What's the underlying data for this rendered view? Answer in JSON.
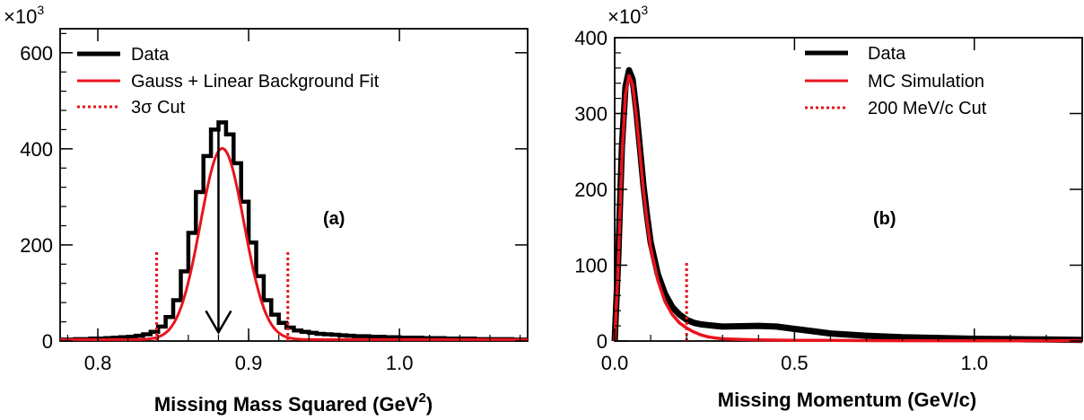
{
  "chart_data": [
    {
      "type": "line",
      "panel_label": "(a)",
      "xlabel_main": "Missing Mass Squared (GeV",
      "xlabel_sup": "2",
      "xlabel_end": ")",
      "ylabel": "",
      "multiplier_base": "×10",
      "multiplier_exp": "3",
      "xlim": [
        0.775,
        1.085
      ],
      "ylim": [
        0,
        650
      ],
      "x_ticks": [
        0.8,
        0.9,
        1.0
      ],
      "x_tick_labels": [
        "0.8",
        "0.9",
        "1.0"
      ],
      "y_ticks": [
        0,
        200,
        400,
        600
      ],
      "y_tick_labels": [
        "0",
        "200",
        "400",
        "600"
      ],
      "legend": [
        "Data",
        "Gauss + Linear Background Fit",
        "3σ Cut"
      ],
      "legend_position": "top-left",
      "colors": {
        "data": "#000000",
        "fit": "#e8141c",
        "cut": "#e8141c"
      },
      "series": [
        {
          "name": "Data",
          "style": "step",
          "bin_width": 0.005,
          "x": [
            0.775,
            0.78,
            0.785,
            0.79,
            0.795,
            0.8,
            0.805,
            0.81,
            0.815,
            0.82,
            0.825,
            0.83,
            0.835,
            0.84,
            0.845,
            0.85,
            0.855,
            0.86,
            0.865,
            0.87,
            0.875,
            0.88,
            0.885,
            0.89,
            0.895,
            0.9,
            0.905,
            0.91,
            0.915,
            0.92,
            0.925,
            0.93,
            0.935,
            0.94,
            0.945,
            0.95,
            0.955,
            0.96,
            0.965,
            0.97,
            0.975,
            0.98,
            0.985,
            0.99,
            0.995,
            1.0,
            1.005,
            1.01,
            1.015,
            1.02,
            1.025,
            1.03,
            1.035,
            1.04,
            1.045,
            1.05,
            1.055,
            1.06,
            1.065,
            1.07,
            1.075,
            1.08
          ],
          "values": [
            3,
            3,
            4,
            4,
            5,
            5,
            6,
            7,
            8,
            9,
            11,
            14,
            19,
            30,
            50,
            85,
            145,
            225,
            310,
            385,
            440,
            455,
            430,
            370,
            290,
            205,
            135,
            85,
            55,
            38,
            28,
            22,
            19,
            17,
            15,
            14,
            13,
            12,
            11,
            10,
            10,
            9,
            9,
            8,
            8,
            7,
            7,
            7,
            6,
            6,
            6,
            5,
            5,
            5,
            5,
            4,
            4,
            4,
            4,
            4,
            3,
            3
          ]
        },
        {
          "name": "Gauss + Linear Background Fit",
          "style": "curve",
          "gauss_amp": 398,
          "gauss_mean": 0.8825,
          "gauss_sigma": 0.0145,
          "bkg_offset": 3,
          "x_range": [
            0.775,
            1.085
          ]
        }
      ],
      "cuts": [
        {
          "x": 0.839,
          "y_top": 190
        },
        {
          "x": 0.926,
          "y_top": 190
        }
      ],
      "arrow": {
        "x": 0.88,
        "y_from": 445,
        "y_to": 18
      }
    },
    {
      "type": "line",
      "panel_label": "(b)",
      "xlabel_main": "Missing Momentum (GeV/c)",
      "ylabel": "",
      "multiplier_base": "×10",
      "multiplier_exp": "3",
      "xlim": [
        0,
        1.3
      ],
      "ylim": [
        0,
        400
      ],
      "x_ticks": [
        0.0,
        0.5,
        1.0
      ],
      "x_tick_labels": [
        "0.0",
        "0.5",
        "1.0"
      ],
      "y_ticks": [
        0,
        100,
        200,
        300,
        400
      ],
      "y_tick_labels": [
        "0",
        "100",
        "200",
        "300",
        "400"
      ],
      "legend": [
        "Data",
        "MC Simulation",
        "200 MeV/c Cut"
      ],
      "legend_position": "top-right",
      "colors": {
        "data": "#000000",
        "mc": "#e8141c",
        "cut": "#e8141c"
      },
      "series": [
        {
          "name": "Data",
          "x": [
            0,
            0.01,
            0.02,
            0.03,
            0.04,
            0.05,
            0.06,
            0.07,
            0.08,
            0.09,
            0.1,
            0.12,
            0.14,
            0.16,
            0.18,
            0.2,
            0.22,
            0.24,
            0.26,
            0.28,
            0.3,
            0.35,
            0.4,
            0.45,
            0.5,
            0.55,
            0.6,
            0.7,
            0.8,
            0.9,
            1.0,
            1.1,
            1.2,
            1.3
          ],
          "values": [
            0,
            110,
            255,
            335,
            357,
            345,
            305,
            255,
            205,
            165,
            130,
            88,
            62,
            45,
            35,
            28,
            24,
            22,
            21,
            20,
            19,
            19.5,
            20,
            19,
            16,
            13,
            10,
            7,
            5,
            4,
            3,
            2.5,
            2,
            1.5
          ]
        },
        {
          "name": "MC Simulation",
          "x": [
            0,
            0.01,
            0.02,
            0.03,
            0.04,
            0.05,
            0.06,
            0.07,
            0.08,
            0.09,
            0.1,
            0.12,
            0.14,
            0.16,
            0.18,
            0.2,
            0.22,
            0.24,
            0.26,
            0.28,
            0.3,
            0.35,
            0.4,
            0.5,
            0.6,
            0.7,
            0.8,
            1.0,
            1.3
          ],
          "values": [
            0,
            100,
            240,
            325,
            350,
            338,
            298,
            248,
            198,
            158,
            123,
            80,
            52,
            35,
            24,
            17,
            12,
            8,
            5.5,
            4,
            3,
            2,
            1.5,
            1,
            0.8,
            0.6,
            0.5,
            0.3,
            0.2
          ]
        }
      ],
      "cuts": [
        {
          "x": 0.2,
          "y_top": 105
        }
      ]
    }
  ]
}
